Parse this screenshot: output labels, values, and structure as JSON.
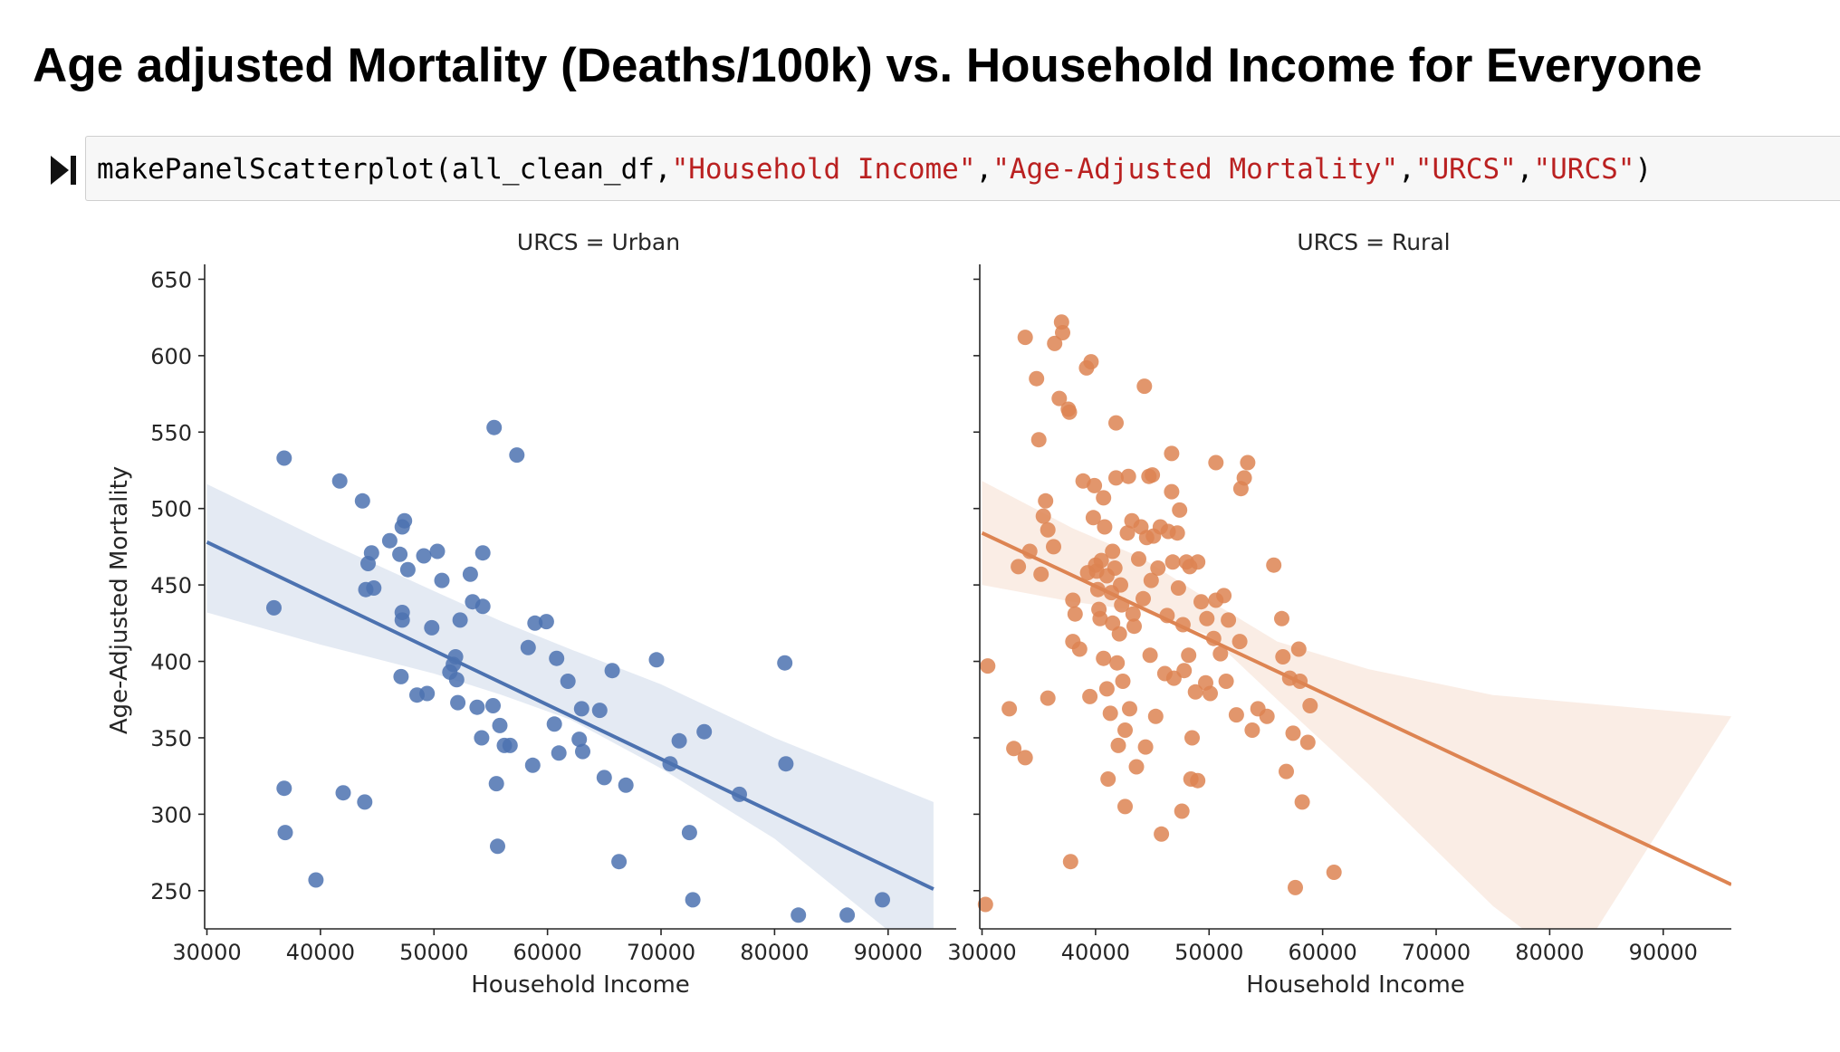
{
  "heading": "Age adjusted Mortality (Deaths/100k) vs. Household Income for Everyone",
  "cell": {
    "code_fn": "makePanelScatterplot(all_clean_df,",
    "arg1": "\"Household Income\"",
    "sep1": ",",
    "arg2": "\"Age-Adjusted Mortality\"",
    "sep2": ",",
    "arg3": "\"URCS\"",
    "sep3": ",",
    "arg4": "\"URCS\"",
    "close": ")"
  },
  "icons": {
    "run": "run-cell-icon"
  },
  "chart_data": {
    "type": "scatter",
    "xlabel": "Household Income",
    "ylabel": "Age-Adjusted Mortality",
    "xlim": [
      29800,
      96000
    ],
    "ylim": [
      225,
      655
    ],
    "xticks": [
      30000,
      40000,
      50000,
      60000,
      70000,
      80000,
      90000
    ],
    "yticks": [
      250,
      300,
      350,
      400,
      450,
      500,
      550,
      600,
      650
    ],
    "grid": false,
    "panels": [
      {
        "title": "URCS = Urban",
        "color": "#4c72b0",
        "fit": {
          "x": [
            30000,
            94000
          ],
          "y": [
            478,
            251
          ]
        },
        "band_upper": [
          [
            30000,
            516
          ],
          [
            40000,
            480
          ],
          [
            50000,
            446
          ],
          [
            56000,
            426
          ],
          [
            62000,
            408
          ],
          [
            70000,
            385
          ],
          [
            80000,
            350
          ],
          [
            94000,
            308
          ]
        ],
        "band_lower": [
          [
            30000,
            432
          ],
          [
            40000,
            411
          ],
          [
            50000,
            392
          ],
          [
            56000,
            378
          ],
          [
            62000,
            362
          ],
          [
            70000,
            330
          ],
          [
            80000,
            284
          ],
          [
            94000,
            200
          ]
        ],
        "points": [
          [
            36800,
            533
          ],
          [
            35900,
            435
          ],
          [
            36800,
            317
          ],
          [
            36900,
            288
          ],
          [
            39600,
            257
          ],
          [
            41700,
            518
          ],
          [
            42000,
            314
          ],
          [
            43700,
            505
          ],
          [
            43900,
            308
          ],
          [
            44000,
            447
          ],
          [
            44200,
            464
          ],
          [
            44500,
            471
          ],
          [
            44700,
            448
          ],
          [
            46100,
            479
          ],
          [
            47000,
            470
          ],
          [
            47200,
            488
          ],
          [
            47400,
            492
          ],
          [
            47200,
            432
          ],
          [
            47200,
            427
          ],
          [
            47700,
            460
          ],
          [
            47100,
            390
          ],
          [
            48500,
            378
          ],
          [
            49100,
            469
          ],
          [
            49400,
            379
          ],
          [
            49800,
            422
          ],
          [
            50300,
            472
          ],
          [
            50700,
            453
          ],
          [
            51400,
            393
          ],
          [
            51700,
            398
          ],
          [
            51900,
            403
          ],
          [
            52000,
            388
          ],
          [
            52100,
            373
          ],
          [
            52300,
            427
          ],
          [
            53200,
            457
          ],
          [
            53400,
            439
          ],
          [
            53800,
            370
          ],
          [
            54200,
            350
          ],
          [
            54300,
            471
          ],
          [
            54300,
            436
          ],
          [
            55200,
            371
          ],
          [
            55300,
            553
          ],
          [
            55500,
            320
          ],
          [
            55600,
            279
          ],
          [
            55800,
            358
          ],
          [
            56200,
            345
          ],
          [
            56700,
            345
          ],
          [
            57300,
            535
          ],
          [
            58300,
            409
          ],
          [
            58700,
            332
          ],
          [
            58900,
            425
          ],
          [
            59900,
            426
          ],
          [
            60600,
            359
          ],
          [
            60800,
            402
          ],
          [
            61000,
            340
          ],
          [
            61800,
            387
          ],
          [
            62800,
            349
          ],
          [
            63000,
            369
          ],
          [
            63100,
            341
          ],
          [
            64600,
            368
          ],
          [
            65000,
            324
          ],
          [
            65700,
            394
          ],
          [
            66300,
            269
          ],
          [
            66900,
            319
          ],
          [
            69600,
            401
          ],
          [
            70800,
            333
          ],
          [
            71600,
            348
          ],
          [
            72500,
            288
          ],
          [
            72800,
            244
          ],
          [
            73800,
            354
          ],
          [
            76900,
            313
          ],
          [
            80900,
            399
          ],
          [
            81000,
            333
          ],
          [
            82100,
            234
          ],
          [
            86400,
            234
          ],
          [
            89500,
            244
          ]
        ]
      },
      {
        "title": "URCS = Rural",
        "color": "#dd8452",
        "fit": {
          "x": [
            30000,
            96000
          ],
          "y": [
            484,
            254
          ]
        },
        "band_upper": [
          [
            30000,
            518
          ],
          [
            38000,
            487
          ],
          [
            44000,
            468
          ],
          [
            50000,
            440
          ],
          [
            56000,
            413
          ],
          [
            64000,
            395
          ],
          [
            75000,
            378
          ],
          [
            96000,
            364
          ]
        ],
        "band_lower": [
          [
            30000,
            450
          ],
          [
            38000,
            439
          ],
          [
            44000,
            433
          ],
          [
            50000,
            417
          ],
          [
            56000,
            375
          ],
          [
            64000,
            320
          ],
          [
            75000,
            240
          ],
          [
            82000,
            200
          ]
        ],
        "points": [
          [
            30500,
            397
          ],
          [
            30300,
            241
          ],
          [
            32400,
            369
          ],
          [
            32800,
            343
          ],
          [
            33200,
            462
          ],
          [
            33800,
            612
          ],
          [
            33800,
            337
          ],
          [
            34200,
            472
          ],
          [
            34800,
            585
          ],
          [
            35000,
            545
          ],
          [
            35200,
            457
          ],
          [
            35400,
            495
          ],
          [
            35600,
            505
          ],
          [
            35800,
            486
          ],
          [
            35800,
            376
          ],
          [
            36300,
            475
          ],
          [
            36400,
            608
          ],
          [
            36800,
            572
          ],
          [
            37000,
            622
          ],
          [
            37100,
            615
          ],
          [
            37600,
            565
          ],
          [
            37700,
            563
          ],
          [
            37800,
            269
          ],
          [
            38000,
            440
          ],
          [
            38000,
            413
          ],
          [
            38200,
            431
          ],
          [
            38600,
            408
          ],
          [
            38900,
            518
          ],
          [
            39200,
            592
          ],
          [
            39300,
            458
          ],
          [
            39500,
            377
          ],
          [
            39600,
            596
          ],
          [
            39800,
            494
          ],
          [
            39900,
            515
          ],
          [
            40000,
            463
          ],
          [
            40100,
            459
          ],
          [
            40200,
            447
          ],
          [
            40300,
            434
          ],
          [
            40400,
            428
          ],
          [
            40500,
            466
          ],
          [
            40700,
            507
          ],
          [
            40700,
            402
          ],
          [
            40800,
            488
          ],
          [
            41000,
            456
          ],
          [
            41000,
            382
          ],
          [
            41100,
            323
          ],
          [
            41300,
            366
          ],
          [
            41400,
            445
          ],
          [
            41500,
            472
          ],
          [
            41500,
            425
          ],
          [
            41700,
            461
          ],
          [
            41800,
            556
          ],
          [
            41800,
            520
          ],
          [
            41900,
            399
          ],
          [
            42000,
            345
          ],
          [
            42100,
            418
          ],
          [
            42200,
            450
          ],
          [
            42300,
            437
          ],
          [
            42400,
            387
          ],
          [
            42600,
            355
          ],
          [
            42600,
            305
          ],
          [
            42800,
            484
          ],
          [
            42900,
            521
          ],
          [
            43000,
            369
          ],
          [
            43200,
            492
          ],
          [
            43300,
            431
          ],
          [
            43400,
            423
          ],
          [
            43600,
            331
          ],
          [
            43800,
            467
          ],
          [
            44000,
            488
          ],
          [
            44200,
            441
          ],
          [
            44300,
            580
          ],
          [
            44400,
            344
          ],
          [
            44500,
            481
          ],
          [
            44700,
            521
          ],
          [
            44800,
            404
          ],
          [
            44900,
            453
          ],
          [
            45000,
            522
          ],
          [
            45100,
            482
          ],
          [
            45300,
            364
          ],
          [
            45500,
            461
          ],
          [
            45700,
            488
          ],
          [
            45800,
            287
          ],
          [
            46100,
            392
          ],
          [
            46300,
            430
          ],
          [
            46400,
            485
          ],
          [
            46700,
            536
          ],
          [
            46700,
            511
          ],
          [
            46800,
            465
          ],
          [
            46900,
            389
          ],
          [
            47200,
            484
          ],
          [
            47300,
            448
          ],
          [
            47400,
            499
          ],
          [
            47600,
            302
          ],
          [
            47700,
            424
          ],
          [
            47800,
            394
          ],
          [
            48000,
            465
          ],
          [
            48200,
            404
          ],
          [
            48300,
            462
          ],
          [
            48400,
            323
          ],
          [
            48500,
            350
          ],
          [
            48800,
            380
          ],
          [
            49000,
            465
          ],
          [
            49300,
            439
          ],
          [
            49700,
            386
          ],
          [
            49800,
            428
          ],
          [
            50100,
            379
          ],
          [
            50400,
            415
          ],
          [
            50600,
            440
          ],
          [
            51000,
            405
          ],
          [
            51300,
            443
          ],
          [
            51500,
            387
          ],
          [
            51700,
            427
          ],
          [
            52400,
            365
          ],
          [
            52700,
            413
          ],
          [
            52800,
            513
          ],
          [
            53100,
            520
          ],
          [
            53400,
            530
          ],
          [
            53800,
            355
          ],
          [
            54300,
            369
          ],
          [
            55100,
            364
          ],
          [
            55700,
            463
          ],
          [
            56400,
            428
          ],
          [
            56500,
            403
          ],
          [
            56800,
            328
          ],
          [
            57100,
            389
          ],
          [
            57400,
            353
          ],
          [
            57600,
            252
          ],
          [
            57900,
            408
          ],
          [
            58000,
            387
          ],
          [
            58200,
            308
          ],
          [
            58700,
            347
          ],
          [
            58900,
            371
          ],
          [
            61000,
            262
          ],
          [
            50600,
            530
          ],
          [
            49000,
            322
          ]
        ]
      }
    ]
  }
}
